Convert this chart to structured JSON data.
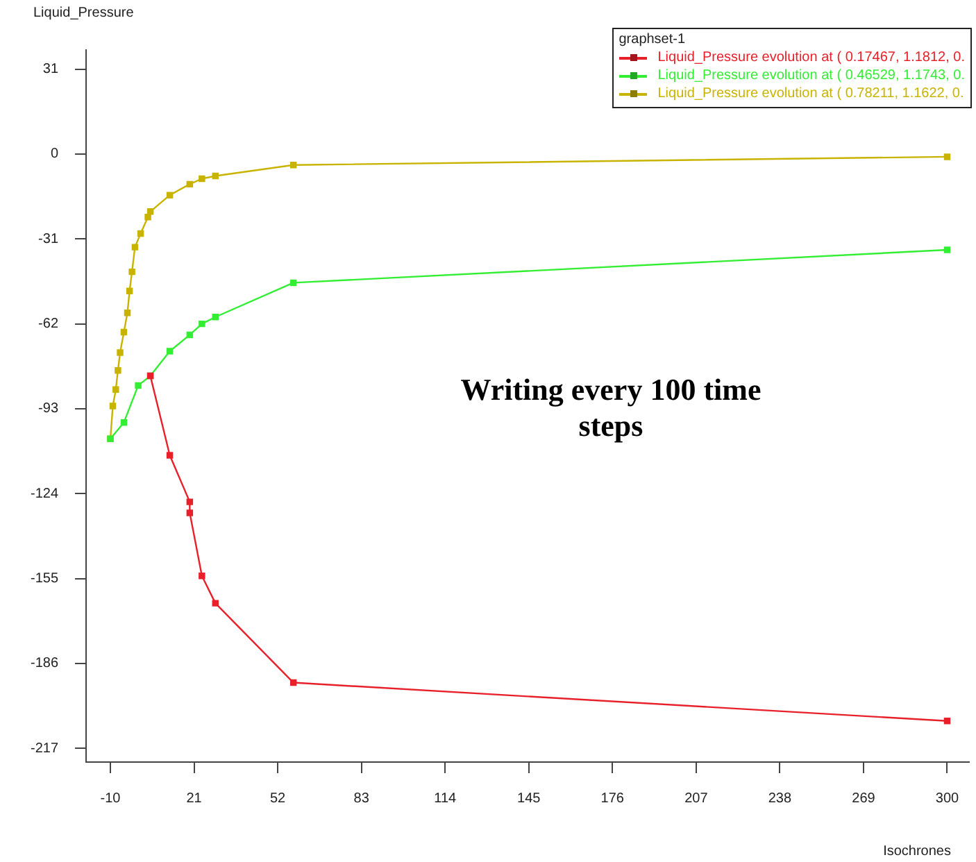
{
  "chart_data": {
    "type": "line",
    "xlabel": "Isochrones",
    "ylabel": "Liquid_Pressure",
    "legend_title": "graphset-1",
    "legend": "top right",
    "marker": "square",
    "line_style": "solid",
    "grid": false,
    "annotations": [
      "Writing every 100 time steps"
    ],
    "xlim": [
      -19,
      308
    ],
    "xticks": [
      -10,
      21,
      52,
      83,
      114,
      145,
      176,
      207,
      238,
      269,
      300
    ],
    "ylim": [
      -222,
      38
    ],
    "yticks": [
      31,
      0,
      -31,
      -62,
      -93,
      -124,
      -155,
      -186,
      -217
    ],
    "series": [
      {
        "name": "Liquid_Pressure evolution at ( 0.17467, 1.1812, 0.",
        "color": "#e8202a",
        "x": [
          4.8,
          12,
          19.4,
          19.4,
          23.9,
          28.9,
          57.8,
          300
        ],
        "values": [
          -81,
          -110,
          -127,
          -131,
          -154,
          -164,
          -193,
          -207
        ]
      },
      {
        "name": "Liquid_Pressure evolution at ( 0.46529, 1.1743, 0.",
        "color": "#33ee33",
        "x": [
          -10,
          -5,
          0.3,
          4.8,
          12,
          19.4,
          23.9,
          28.9,
          57.8,
          300
        ],
        "values": [
          -104,
          -98,
          -84.5,
          -81,
          -72,
          -66,
          -62,
          -59.5,
          -47,
          -35
        ]
      },
      {
        "name": "Liquid_Pressure evolution at ( 0.78211, 1.1622, 0.",
        "color": "#c8b400",
        "x": [
          -10,
          -9.1,
          -8,
          -7.2,
          -6.4,
          -5,
          -3.7,
          -2.9,
          -2,
          -0.9,
          1.2,
          3.9,
          4.8,
          12,
          19.4,
          23.9,
          28.9,
          57.8,
          300
        ],
        "values": [
          -104,
          -92,
          -86,
          -79,
          -72.5,
          -65,
          -58,
          -50,
          -43,
          -34,
          -29,
          -23,
          -21,
          -15,
          -11,
          -9,
          -8,
          -4,
          -1
        ]
      }
    ]
  }
}
